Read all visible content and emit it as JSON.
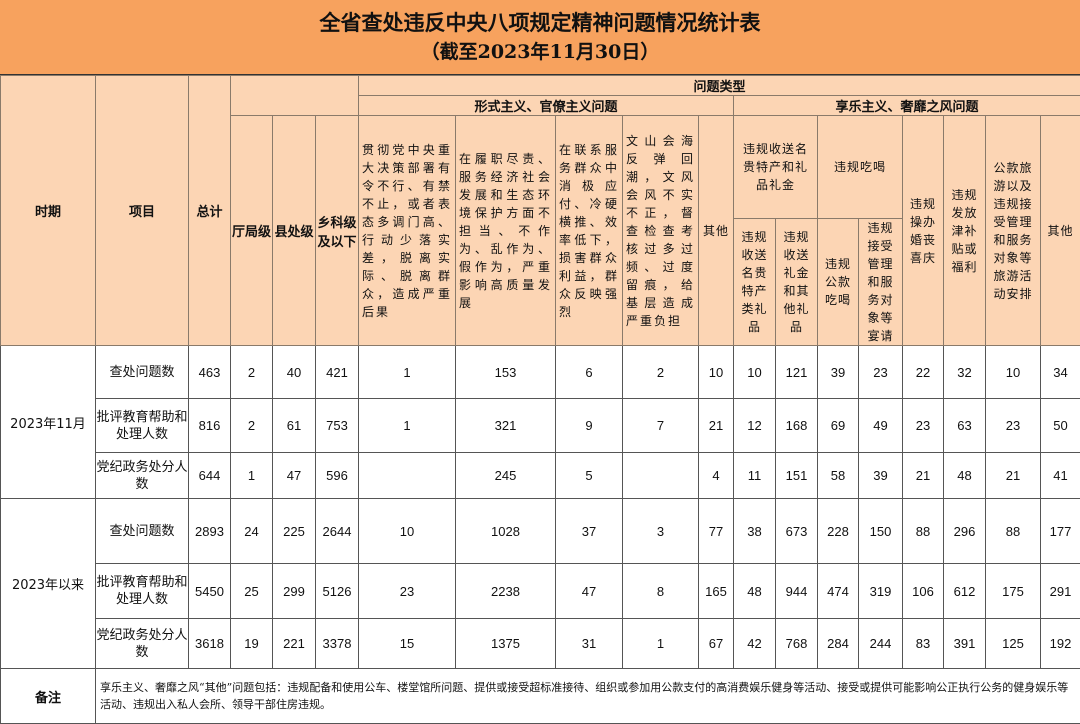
{
  "title": "全省查处违反中央八项规定精神问题情况统计表",
  "subtitle": "（截至2023年11月30日）",
  "header": {
    "period": "时期",
    "item": "项目",
    "total": "总计",
    "problem_type": "问题类型",
    "formalism": "形式主义、官僚主义问题",
    "hedonism": "享乐主义、奢靡之风问题",
    "level_bureau": "厅局级",
    "level_county": "县处级",
    "level_township": "乡科级及以下",
    "f1": "贯彻党中央重大决策部署有令不行、有禁不止，或者表态多调门高、行动少落实差，脱离实际、脱离群众，造成严重后果",
    "f2": "在履职尽责、服务经济社会发展和生态环境保护方面不担当、不作为、乱作为、假作为，严重影响高质量发展",
    "f3": "在联系服务群众中消极应付、冷硬横推、效率低下，损害群众利益，群众反映强烈",
    "f4": "文山会海反弹回潮，文风会风不实不正，督查检查考核过多过频、过度留痕，给基层造成严重负担",
    "f_other": "其他",
    "h_gift": "违规收送名贵特产和礼品礼金",
    "h_gift_a": "违规收送名贵特产类礼品",
    "h_gift_b": "违规收送礼金和其他礼品",
    "h_dine": "违规吃喝",
    "h_dine_a": "违规公款吃喝",
    "h_dine_b": "违规接受管理和服务对象等宴请",
    "h_wedding": "违规操办婚丧喜庆",
    "h_subsidy": "违规发放津补贴或福利",
    "h_travel": "公款旅游以及违规接受管理和服务对象等旅游活动安排",
    "h_other": "其他"
  },
  "groups": [
    {
      "period": "2023年11月",
      "rows": [
        {
          "item": "查处问题数",
          "values": [
            "463",
            "2",
            "40",
            "421",
            "1",
            "153",
            "6",
            "2",
            "10",
            "10",
            "121",
            "39",
            "23",
            "22",
            "32",
            "10",
            "34"
          ]
        },
        {
          "item": "批评教育帮助和处理人数",
          "values": [
            "816",
            "2",
            "61",
            "753",
            "1",
            "321",
            "9",
            "7",
            "21",
            "12",
            "168",
            "69",
            "49",
            "23",
            "63",
            "23",
            "50"
          ]
        },
        {
          "item": "党纪政务处分人数",
          "values": [
            "644",
            "1",
            "47",
            "596",
            "",
            "245",
            "5",
            "",
            "4",
            "11",
            "151",
            "58",
            "39",
            "21",
            "48",
            "21",
            "41"
          ]
        }
      ]
    },
    {
      "period": "2023年以来",
      "rows": [
        {
          "item": "查处问题数",
          "values": [
            "2893",
            "24",
            "225",
            "2644",
            "10",
            "1028",
            "37",
            "3",
            "77",
            "38",
            "673",
            "228",
            "150",
            "88",
            "296",
            "88",
            "177"
          ]
        },
        {
          "item": "批评教育帮助和处理人数",
          "values": [
            "5450",
            "25",
            "299",
            "5126",
            "23",
            "2238",
            "47",
            "8",
            "165",
            "48",
            "944",
            "474",
            "319",
            "106",
            "612",
            "175",
            "291"
          ]
        },
        {
          "item": "党纪政务处分人数",
          "values": [
            "3618",
            "19",
            "221",
            "3378",
            "15",
            "1375",
            "31",
            "1",
            "67",
            "42",
            "768",
            "284",
            "244",
            "83",
            "391",
            "125",
            "192"
          ]
        }
      ]
    }
  ],
  "note": {
    "label": "备注",
    "text": "享乐主义、奢靡之风“其他”问题包括：违规配备和使用公车、楼堂馆所问题、提供或接受超标准接待、组织或参加用公款支付的高消费娱乐健身等活动、接受或提供可能影响公正执行公务的健身娱乐等活动、违规出入私人会所、领导干部住房违规。"
  },
  "colors": {
    "title_bg": "#F7A25E",
    "header_bg": "#FCD5B4"
  }
}
